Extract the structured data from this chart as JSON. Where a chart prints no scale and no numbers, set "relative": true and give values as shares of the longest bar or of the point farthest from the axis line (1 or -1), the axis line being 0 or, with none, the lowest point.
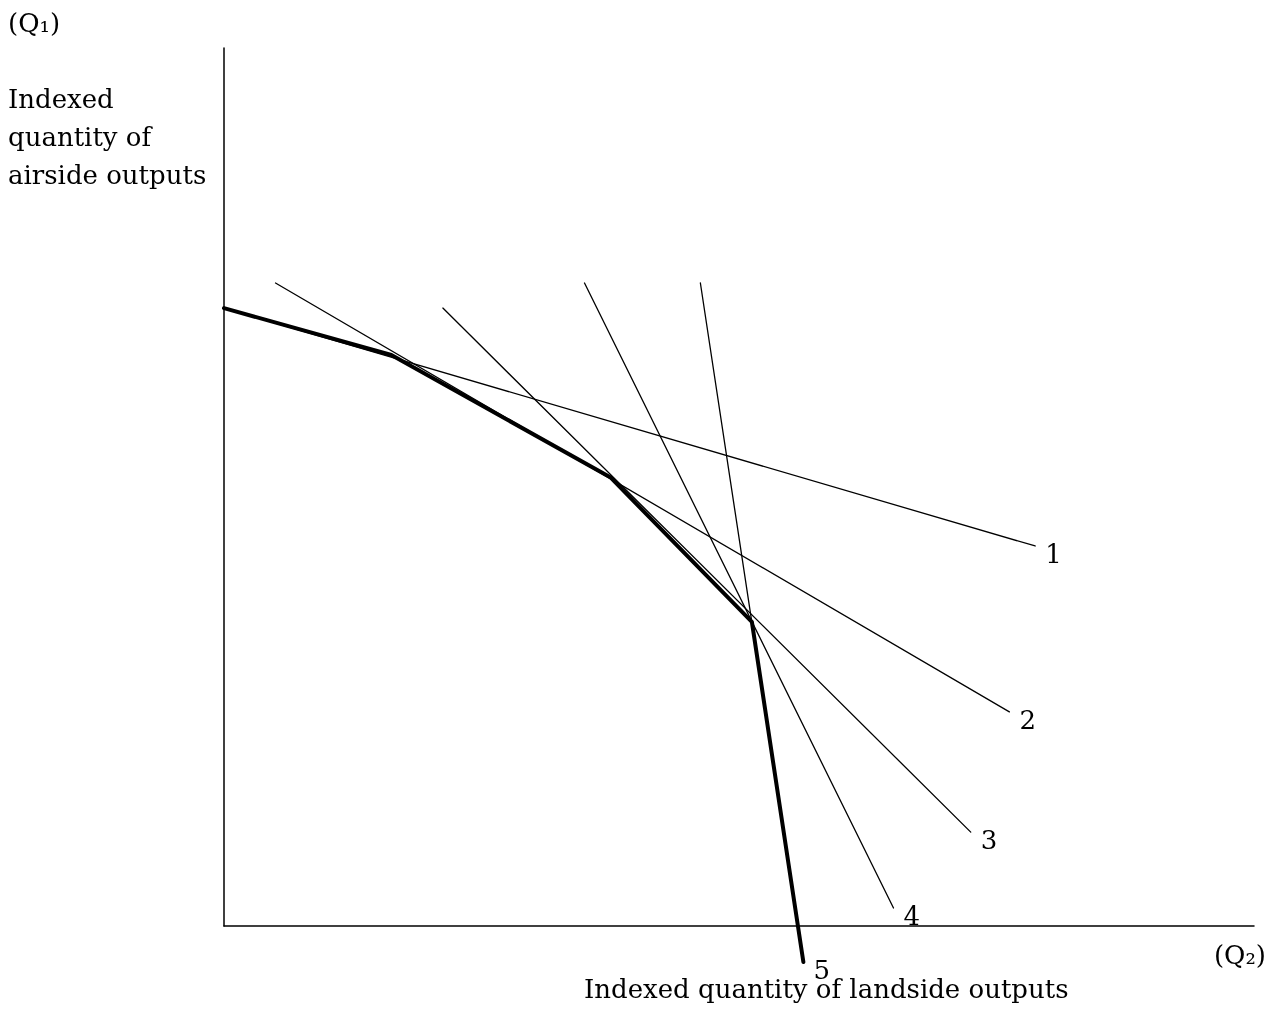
{
  "chart_data": {
    "type": "line",
    "relative": true,
    "tick_labels": false,
    "grid": false,
    "legend": false,
    "marker": "none",
    "line_style": "solid",
    "ylabel": "Indexed quantity of airside outputs",
    "xlabel": "Indexed quantity of landside outputs",
    "annotations": [
      "(Q₁)",
      "(Q₂)"
    ],
    "categories": [
      null,
      null,
      null,
      null,
      null,
      null,
      null,
      null,
      null,
      null,
      null,
      null,
      null,
      null,
      null,
      null,
      null,
      null,
      null,
      null,
      null,
      null,
      null,
      null,
      null,
      null,
      null,
      null,
      null,
      null,
      null,
      null,
      null,
      null,
      null,
      null,
      null,
      null,
      null,
      null,
      null,
      null,
      null,
      null,
      null,
      null,
      null,
      null,
      null,
      null,
      null,
      null,
      null,
      null,
      null,
      null,
      null,
      null,
      null,
      null,
      null,
      null,
      null,
      null,
      null,
      null,
      null,
      null,
      null,
      null,
      null,
      null,
      null,
      null,
      null,
      null,
      null,
      null,
      null,
      null,
      null
    ],
    "series": [
      {
        "name": "1",
        "color": "#000000",
        "values": [
          0.961,
          null,
          null,
          null,
          null,
          null,
          null,
          null,
          null,
          null,
          null,
          null,
          null,
          null,
          null,
          null,
          null,
          null,
          null,
          null,
          null,
          null,
          null,
          null,
          null,
          null,
          null,
          null,
          null,
          null,
          null,
          null,
          null,
          null,
          null,
          null,
          null,
          null,
          null,
          null,
          null,
          null,
          null,
          null,
          null,
          null,
          null,
          null,
          null,
          null,
          null,
          null,
          null,
          null,
          null,
          null,
          null,
          null,
          null,
          null,
          null,
          null,
          null,
          0.591,
          null,
          null,
          null,
          null,
          null,
          null,
          null,
          null,
          null,
          null,
          null,
          null,
          null,
          null,
          null,
          null,
          null
        ]
      },
      {
        "name": "2",
        "color": "#000000",
        "values": [
          null,
          null,
          null,
          null,
          1.0,
          null,
          null,
          null,
          null,
          null,
          null,
          null,
          null,
          null,
          null,
          null,
          null,
          null,
          null,
          null,
          null,
          null,
          null,
          null,
          null,
          null,
          null,
          null,
          null,
          null,
          null,
          null,
          null,
          null,
          null,
          null,
          null,
          null,
          null,
          null,
          null,
          null,
          null,
          null,
          null,
          null,
          null,
          null,
          null,
          null,
          null,
          null,
          null,
          null,
          null,
          null,
          null,
          null,
          null,
          null,
          null,
          0.333,
          null,
          null,
          null,
          null,
          null,
          null,
          null,
          null,
          null,
          null,
          null,
          null,
          null,
          null,
          null,
          null,
          null,
          null,
          null
        ]
      },
      {
        "name": "3",
        "color": "#000000",
        "values": [
          null,
          null,
          null,
          null,
          null,
          null,
          null,
          null,
          null,
          null,
          null,
          null,
          null,
          null,
          null,
          null,
          null,
          0.961,
          null,
          null,
          null,
          null,
          null,
          null,
          null,
          null,
          null,
          null,
          null,
          null,
          null,
          null,
          null,
          null,
          null,
          null,
          null,
          null,
          null,
          null,
          null,
          null,
          null,
          null,
          null,
          null,
          null,
          null,
          null,
          null,
          null,
          null,
          null,
          null,
          null,
          null,
          null,
          null,
          0.146,
          null,
          null,
          null,
          null,
          null,
          null,
          null,
          null,
          null,
          null,
          null,
          null,
          null,
          null,
          null,
          null,
          null,
          null,
          null,
          null,
          null,
          null
        ]
      },
      {
        "name": "4",
        "color": "#000000",
        "values": [
          null,
          null,
          null,
          null,
          null,
          null,
          null,
          null,
          null,
          null,
          null,
          null,
          null,
          null,
          null,
          null,
          null,
          null,
          null,
          null,
          null,
          null,
          null,
          null,
          null,
          null,
          null,
          null,
          1.0,
          null,
          null,
          null,
          null,
          null,
          null,
          null,
          null,
          null,
          null,
          null,
          null,
          null,
          null,
          null,
          null,
          null,
          null,
          null,
          null,
          null,
          null,
          null,
          0.028,
          null,
          null,
          null,
          null,
          null,
          null,
          null,
          null,
          null,
          null,
          null,
          null,
          null,
          null,
          null,
          null,
          null,
          null,
          null,
          null,
          null,
          null,
          null,
          null,
          null,
          null,
          null,
          null
        ]
      },
      {
        "name": "5",
        "color": "#000000",
        "values": [
          null,
          null,
          null,
          null,
          null,
          null,
          null,
          null,
          null,
          null,
          null,
          null,
          null,
          null,
          null,
          null,
          null,
          null,
          null,
          null,
          null,
          null,
          null,
          null,
          null,
          null,
          null,
          null,
          null,
          null,
          null,
          null,
          null,
          null,
          null,
          null,
          null,
          1.0,
          null,
          null,
          null,
          null,
          null,
          null,
          null,
          -0.056,
          null,
          null,
          null,
          null,
          null,
          null,
          null,
          null,
          null,
          null,
          null,
          null,
          null,
          null,
          null,
          null,
          null,
          null,
          null,
          null,
          null,
          null,
          null,
          null,
          null,
          null,
          null,
          null,
          null,
          null,
          null,
          null,
          null,
          null,
          null
        ]
      },
      {
        "color": "#000000",
        "values": [
          0.961,
          null,
          null,
          null,
          null,
          null,
          null,
          null,
          null,
          null,
          null,
          null,
          null,
          0.888,
          null,
          null,
          null,
          null,
          null,
          null,
          null,
          null,
          null,
          null,
          null,
          null,
          null,
          null,
          null,
          null,
          0.698,
          null,
          null,
          null,
          null,
          null,
          null,
          null,
          null,
          null,
          null,
          0.473,
          null,
          null,
          null,
          -0.056,
          null,
          null,
          null,
          null,
          null,
          null,
          null,
          null,
          null,
          null,
          null,
          null,
          null,
          null,
          null,
          null,
          null,
          null,
          null,
          null,
          null,
          null,
          null,
          null,
          null,
          null,
          null,
          null,
          null,
          null,
          null,
          null,
          null,
          null,
          null
        ]
      }
    ]
  }
}
